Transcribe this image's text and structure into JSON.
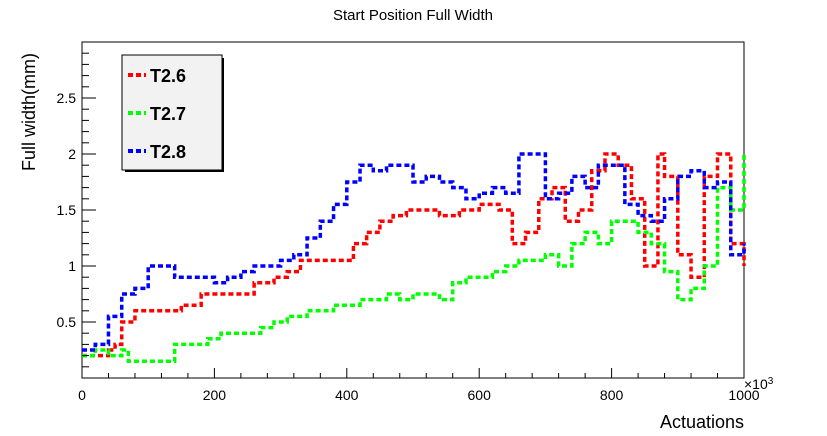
{
  "chart_data": {
    "type": "line",
    "title": "Start Position Full Width",
    "xlabel": "Actuations",
    "ylabel": "Full width(mm)",
    "x_multiplier_label": "×10",
    "x_multiplier_exp": "3",
    "xlim": [
      0,
      1000
    ],
    "ylim": [
      0,
      3.0
    ],
    "x_ticks": [
      0,
      200,
      400,
      600,
      800,
      1000
    ],
    "y_ticks": [
      0.5,
      1,
      1.5,
      2,
      2.5
    ],
    "y_tick_labels": [
      "0.5",
      "1",
      "1.5",
      "2",
      "2.5"
    ],
    "legend_position": "top-left",
    "line_style": "dashed",
    "series": [
      {
        "name": "T2.6",
        "color": "#ff0000",
        "x": [
          0,
          20,
          40,
          50,
          60,
          70,
          80,
          90,
          100,
          120,
          150,
          180,
          200,
          230,
          260,
          290,
          310,
          330,
          360,
          390,
          410,
          430,
          450,
          470,
          490,
          510,
          540,
          570,
          600,
          630,
          650,
          670,
          690,
          710,
          730,
          750,
          770,
          790,
          810,
          830,
          850,
          870,
          880,
          900,
          920,
          940,
          960,
          980,
          1000
        ],
        "y": [
          0.2,
          0.2,
          0.25,
          0.3,
          0.5,
          0.5,
          0.6,
          0.6,
          0.6,
          0.6,
          0.65,
          0.75,
          0.75,
          0.75,
          0.85,
          0.9,
          0.95,
          1.05,
          1.05,
          1.05,
          1.2,
          1.3,
          1.4,
          1.45,
          1.5,
          1.5,
          1.45,
          1.5,
          1.55,
          1.5,
          1.2,
          1.3,
          1.6,
          1.7,
          1.4,
          1.5,
          1.85,
          2.0,
          1.9,
          1.6,
          1.0,
          2.0,
          1.8,
          1.1,
          0.9,
          1.8,
          2.0,
          1.2,
          1.0
        ]
      },
      {
        "name": "T2.7",
        "color": "#00ff00",
        "x": [
          0,
          20,
          40,
          60,
          70,
          100,
          130,
          140,
          170,
          190,
          210,
          240,
          270,
          290,
          310,
          340,
          360,
          380,
          400,
          420,
          440,
          460,
          480,
          500,
          520,
          540,
          560,
          580,
          600,
          620,
          640,
          660,
          680,
          700,
          720,
          740,
          760,
          780,
          800,
          820,
          840,
          860,
          880,
          900,
          920,
          940,
          960,
          980,
          1000
        ],
        "y": [
          0.2,
          0.25,
          0.2,
          0.25,
          0.15,
          0.15,
          0.15,
          0.3,
          0.3,
          0.35,
          0.4,
          0.4,
          0.45,
          0.5,
          0.55,
          0.6,
          0.6,
          0.65,
          0.65,
          0.7,
          0.7,
          0.75,
          0.7,
          0.75,
          0.75,
          0.7,
          0.85,
          0.9,
          0.9,
          0.95,
          1.0,
          1.05,
          1.05,
          1.1,
          1.0,
          1.2,
          1.3,
          1.2,
          1.4,
          1.4,
          1.3,
          1.2,
          0.95,
          0.7,
          0.8,
          1.0,
          1.7,
          1.5,
          2.0
        ]
      },
      {
        "name": "T2.8",
        "color": "#0000ff",
        "x": [
          0,
          20,
          40,
          60,
          80,
          100,
          120,
          140,
          160,
          180,
          200,
          220,
          240,
          260,
          280,
          300,
          320,
          340,
          360,
          380,
          400,
          420,
          440,
          460,
          480,
          500,
          520,
          540,
          560,
          580,
          600,
          620,
          640,
          660,
          680,
          700,
          720,
          740,
          760,
          780,
          800,
          820,
          840,
          860,
          880,
          900,
          920,
          940,
          960,
          980,
          1000
        ],
        "y": [
          0.25,
          0.3,
          0.55,
          0.75,
          0.8,
          1.0,
          1.0,
          0.9,
          0.9,
          0.9,
          0.85,
          0.9,
          0.95,
          1.0,
          1.0,
          1.05,
          1.1,
          1.25,
          1.4,
          1.55,
          1.75,
          1.9,
          1.85,
          1.9,
          1.9,
          1.75,
          1.8,
          1.75,
          1.7,
          1.6,
          1.65,
          1.7,
          1.65,
          2.0,
          2.0,
          1.6,
          1.65,
          1.8,
          1.7,
          1.9,
          1.9,
          1.55,
          1.45,
          1.4,
          1.6,
          1.8,
          1.85,
          1.7,
          1.75,
          1.1,
          1.2
        ]
      }
    ]
  }
}
